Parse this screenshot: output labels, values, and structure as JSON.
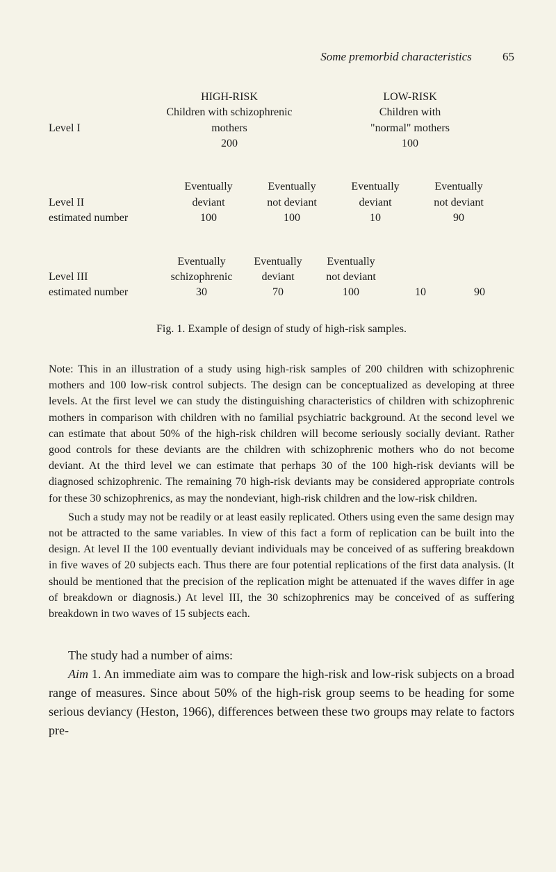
{
  "header": {
    "title": "Some premorbid characteristics",
    "page": "65"
  },
  "level1": {
    "label": "Level I",
    "highRisk": {
      "title": "HIGH-RISK",
      "desc1": "Children with schizophrenic",
      "desc2": "mothers",
      "count": "200"
    },
    "lowRisk": {
      "title": "LOW-RISK",
      "desc1": "Children with",
      "desc2": "\"normal\" mothers",
      "count": "100"
    }
  },
  "level2": {
    "label": "Level II",
    "estLabel": "estimated number",
    "cols": [
      {
        "h1": "Eventually",
        "h2": "deviant",
        "val": "100"
      },
      {
        "h1": "Eventually",
        "h2": "not deviant",
        "val": "100"
      },
      {
        "h1": "Eventually",
        "h2": "deviant",
        "val": "10"
      },
      {
        "h1": "Eventually",
        "h2": "not deviant",
        "val": "90"
      }
    ]
  },
  "level3": {
    "label": "Level III",
    "estLabel": "estimated number",
    "cols": [
      {
        "h1": "Eventually",
        "h2": "schizophrenic",
        "val": "30"
      },
      {
        "h1": "Eventually",
        "h2": "deviant",
        "val": "70"
      },
      {
        "h1": "Eventually",
        "h2": "not deviant",
        "val": "100"
      },
      {
        "h1": "",
        "h2": "",
        "val": "10"
      },
      {
        "h1": "",
        "h2": "",
        "val": "90"
      }
    ]
  },
  "figureCaption": "Fig. 1. Example of design of study of high-risk samples.",
  "noteText1": "Note: This in an illustration of a study using high-risk samples of 200 children with schizophrenic mothers and 100 low-risk control subjects. The design can be conceptualized as developing at three levels. At the first level we can study the distinguishing characteristics of children with schizophrenic mothers in comparison with children with no familial psychiatric background. At the second level we can estimate that about 50% of the high-risk children will become seriously socially deviant. Rather good controls for these deviants are the children with schizophrenic mothers who do not become deviant. At the third level we can estimate that perhaps 30 of the 100 high-risk deviants will be diagnosed schizophrenic. The remaining 70 high-risk deviants may be considered appropriate controls for these 30 schizophrenics, as may the nondeviant, high-risk children and the low-risk children.",
  "noteText2": "Such a study may not be readily or at least easily replicated. Others using even the same design may not be attracted to the same variables. In view of this fact a form of replication can be built into the design. At level II the 100 eventually deviant individuals may be conceived of as suffering breakdown in five waves of 20 subjects each. Thus there are four potential replications of the first data analysis. (It should be mentioned that the precision of the replication might be attenuated if the waves differ in age of breakdown or diagnosis.) At level III, the 30 schizophrenics may be conceived of as suffering breakdown in two waves of 15 subjects each.",
  "mainText": {
    "line1": "The study had a number of aims:",
    "aimLabel": "Aim",
    "aimText": " 1. An immediate aim was to compare the high-risk and low-risk subjects on a broad range of measures. Since about 50% of the high-risk group seems to be heading for some serious deviancy (Heston, 1966), differences between these two groups may relate to factors pre-"
  }
}
